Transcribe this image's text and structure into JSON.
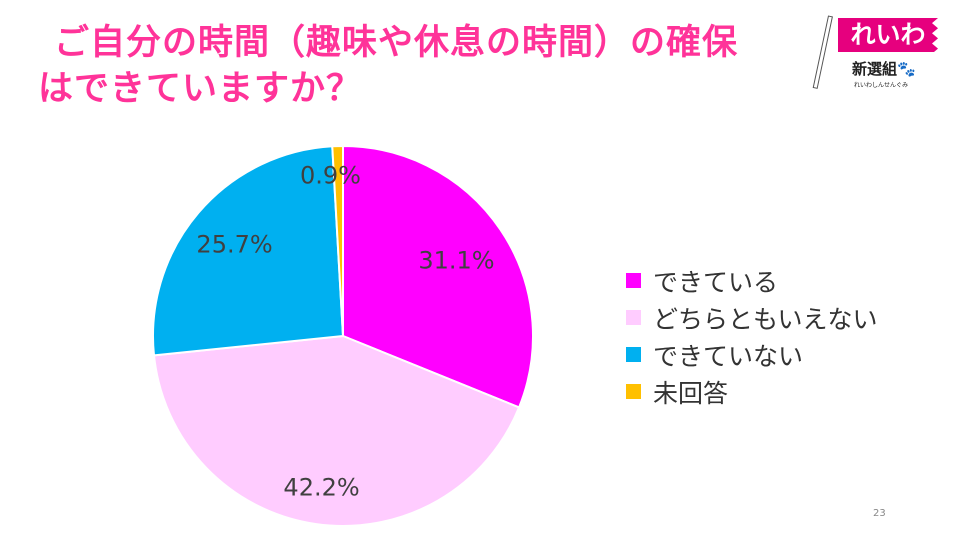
{
  "title": {
    "line1": "ご自分の時間（趣味や休息の時間）の確保",
    "line2": "はできていますか？"
  },
  "logo": {
    "main": "れいわ",
    "name": "新選組",
    "kana": "れいわしんせんぐみ"
  },
  "page_number": "23",
  "chart_data": {
    "type": "pie",
    "title": "ご自分の時間（趣味や休息の時間）の確保はできていますか？",
    "categories": [
      "できている",
      "どちらともいえない",
      "できていない",
      "未回答"
    ],
    "values": [
      31.1,
      42.2,
      25.7,
      0.9
    ],
    "labels": [
      "31.1%",
      "42.2%",
      "25.7%",
      "0.9%"
    ],
    "colors": [
      "#FF00FF",
      "#FFCCFF",
      "#00B0F0",
      "#FFC000"
    ],
    "start": "top",
    "direction": "clockwise",
    "legend": "right"
  }
}
